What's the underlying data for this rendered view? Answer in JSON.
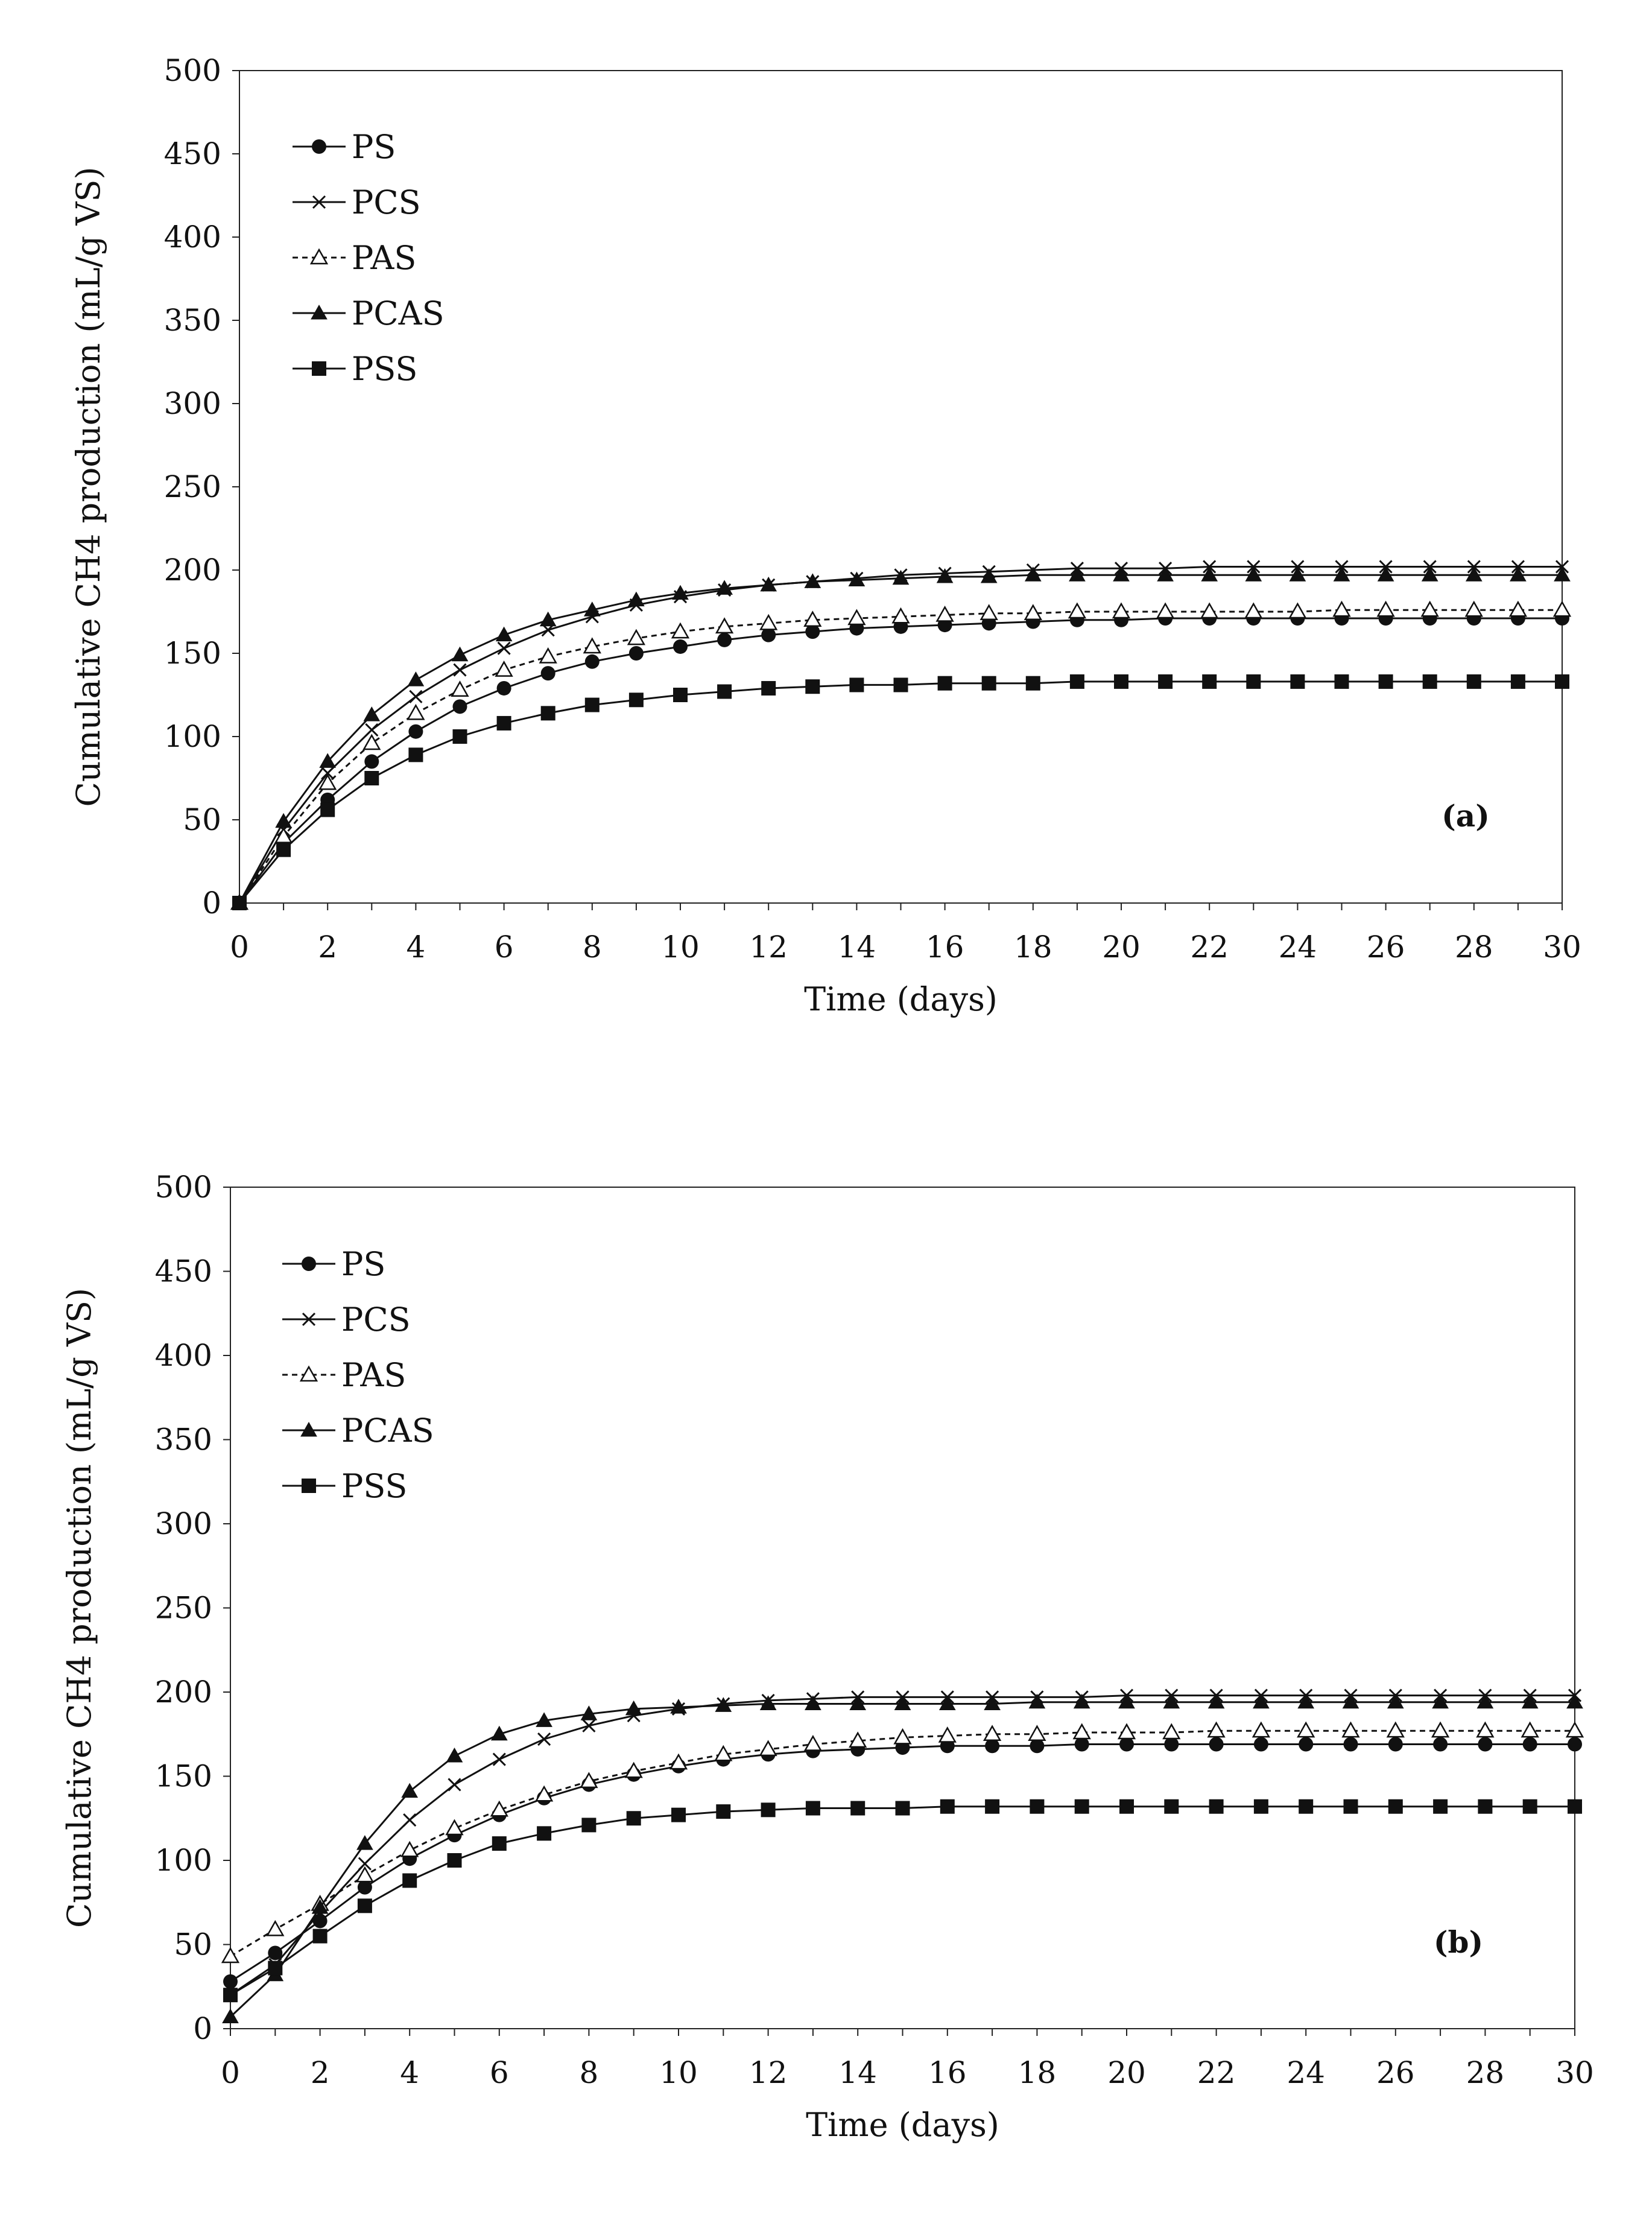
{
  "chart_data": [
    {
      "id": "a",
      "type": "line",
      "panel_label": "(a)",
      "xlabel": "Time (days)",
      "ylabel": "Cumulative CH4 production  (mL/g VS)",
      "xlim": [
        0,
        30
      ],
      "ylim": [
        0,
        500
      ],
      "x_tick_labels": [
        "0",
        "2",
        "4",
        "6",
        "8",
        "10",
        "12",
        "14",
        "16",
        "18",
        "20",
        "22",
        "24",
        "26",
        "28",
        "30"
      ],
      "y_tick_labels": [
        "0",
        "50",
        "100",
        "150",
        "200",
        "250",
        "300",
        "350",
        "400",
        "450",
        "500"
      ],
      "legend_position": "top-left",
      "x": [
        0,
        1,
        2,
        3,
        4,
        5,
        6,
        7,
        8,
        9,
        10,
        11,
        12,
        13,
        14,
        15,
        16,
        17,
        18,
        19,
        20,
        21,
        22,
        23,
        24,
        25,
        26,
        27,
        28,
        29,
        30
      ],
      "series": [
        {
          "name": "PS",
          "marker": "circle",
          "dashed": false,
          "values": [
            0,
            36,
            62,
            85,
            103,
            118,
            129,
            138,
            145,
            150,
            154,
            158,
            161,
            163,
            165,
            166,
            167,
            168,
            169,
            170,
            170,
            171,
            171,
            171,
            171,
            171,
            171,
            171,
            171,
            171,
            171
          ]
        },
        {
          "name": "PCS",
          "marker": "x",
          "dashed": false,
          "values": [
            0,
            44,
            78,
            104,
            124,
            140,
            153,
            164,
            172,
            179,
            184,
            188,
            191,
            193,
            195,
            197,
            198,
            199,
            200,
            201,
            201,
            201,
            202,
            202,
            202,
            202,
            202,
            202,
            202,
            202,
            202
          ]
        },
        {
          "name": "PAS",
          "marker": "triangle-open",
          "dashed": true,
          "values": [
            0,
            40,
            72,
            96,
            114,
            128,
            140,
            148,
            154,
            159,
            163,
            166,
            168,
            170,
            171,
            172,
            173,
            174,
            174,
            175,
            175,
            175,
            175,
            175,
            175,
            176,
            176,
            176,
            176,
            176,
            176
          ]
        },
        {
          "name": "PCAS",
          "marker": "triangle",
          "dashed": false,
          "values": [
            0,
            49,
            85,
            113,
            134,
            149,
            161,
            170,
            176,
            182,
            186,
            189,
            191,
            193,
            194,
            195,
            196,
            196,
            197,
            197,
            197,
            197,
            197,
            197,
            197,
            197,
            197,
            197,
            197,
            197,
            197
          ]
        },
        {
          "name": "PSS",
          "marker": "square",
          "dashed": false,
          "values": [
            0,
            32,
            56,
            75,
            89,
            100,
            108,
            114,
            119,
            122,
            125,
            127,
            129,
            130,
            131,
            131,
            132,
            132,
            132,
            133,
            133,
            133,
            133,
            133,
            133,
            133,
            133,
            133,
            133,
            133,
            133
          ]
        }
      ]
    },
    {
      "id": "b",
      "type": "line",
      "panel_label": "(b)",
      "xlabel": "Time (days)",
      "ylabel": "Cumulative CH4 production  (mL/g VS)",
      "xlim": [
        0,
        30
      ],
      "ylim": [
        0,
        500
      ],
      "x_tick_labels": [
        "0",
        "2",
        "4",
        "6",
        "8",
        "10",
        "12",
        "14",
        "16",
        "18",
        "20",
        "22",
        "24",
        "26",
        "28",
        "30"
      ],
      "y_tick_labels": [
        "0",
        "50",
        "100",
        "150",
        "200",
        "250",
        "300",
        "350",
        "400",
        "450",
        "500"
      ],
      "legend_position": "top-left",
      "x": [
        0,
        1,
        2,
        3,
        4,
        5,
        6,
        7,
        8,
        9,
        10,
        11,
        12,
        13,
        14,
        15,
        16,
        17,
        18,
        19,
        20,
        21,
        22,
        23,
        24,
        25,
        26,
        27,
        28,
        29,
        30
      ],
      "series": [
        {
          "name": "PS",
          "marker": "circle",
          "dashed": false,
          "values": [
            28,
            45,
            64,
            84,
            101,
            115,
            127,
            137,
            145,
            151,
            156,
            160,
            163,
            165,
            166,
            167,
            168,
            168,
            168,
            169,
            169,
            169,
            169,
            169,
            169,
            169,
            169,
            169,
            169,
            169,
            169
          ]
        },
        {
          "name": "PCS",
          "marker": "x",
          "dashed": false,
          "values": [
            20,
            38,
            69,
            98,
            124,
            145,
            160,
            172,
            180,
            186,
            190,
            193,
            195,
            196,
            197,
            197,
            197,
            197,
            197,
            197,
            198,
            198,
            198,
            198,
            198,
            198,
            198,
            198,
            198,
            198,
            198
          ]
        },
        {
          "name": "PAS",
          "marker": "triangle-open",
          "dashed": true,
          "values": [
            43,
            59,
            74,
            91,
            106,
            119,
            130,
            139,
            147,
            153,
            158,
            163,
            166,
            169,
            171,
            173,
            174,
            175,
            175,
            176,
            176,
            176,
            177,
            177,
            177,
            177,
            177,
            177,
            177,
            177,
            177
          ]
        },
        {
          "name": "PCAS",
          "marker": "triangle",
          "dashed": false,
          "values": [
            7,
            32,
            72,
            110,
            141,
            162,
            175,
            183,
            187,
            190,
            191,
            192,
            193,
            193,
            193,
            193,
            193,
            193,
            194,
            194,
            194,
            194,
            194,
            194,
            194,
            194,
            194,
            194,
            194,
            194,
            194
          ]
        },
        {
          "name": "PSS",
          "marker": "square",
          "dashed": false,
          "values": [
            20,
            36,
            55,
            73,
            88,
            100,
            110,
            116,
            121,
            125,
            127,
            129,
            130,
            131,
            131,
            131,
            132,
            132,
            132,
            132,
            132,
            132,
            132,
            132,
            132,
            132,
            132,
            132,
            132,
            132,
            132
          ]
        }
      ]
    }
  ]
}
